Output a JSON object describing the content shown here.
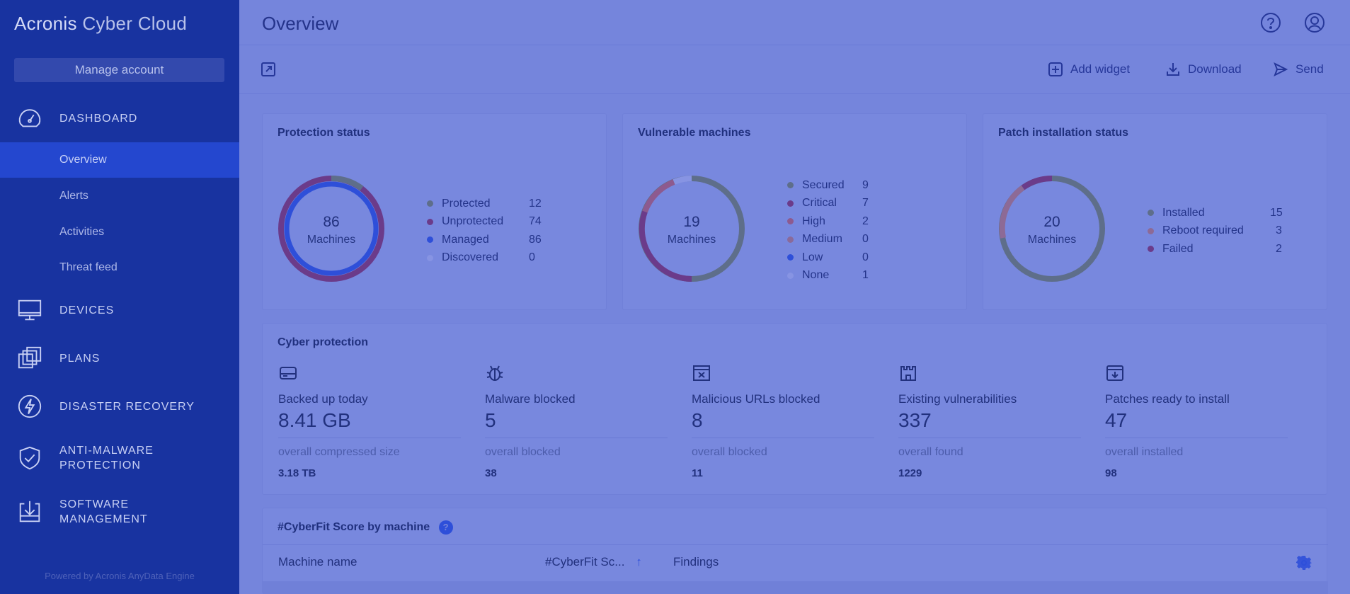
{
  "brand": {
    "part1": "Acronis",
    "part2": " Cyber Cloud"
  },
  "sidebar": {
    "manage_account": "Manage account",
    "sections": [
      {
        "label": "DASHBOARD",
        "icon": "gauge-icon"
      },
      {
        "label": "DEVICES",
        "icon": "monitor-icon"
      },
      {
        "label": "PLANS",
        "icon": "plans-icon"
      },
      {
        "label": "DISASTER RECOVERY",
        "icon": "lightning-icon"
      },
      {
        "label_line1": "ANTI-MALWARE",
        "label_line2": "PROTECTION",
        "icon": "shield-icon"
      },
      {
        "label_line1": "SOFTWARE",
        "label_line2": "MANAGEMENT",
        "icon": "software-icon"
      }
    ],
    "dashboard_items": [
      {
        "label": "Overview",
        "active": true
      },
      {
        "label": "Alerts"
      },
      {
        "label": "Activities"
      },
      {
        "label": "Threat feed"
      }
    ],
    "powered_by": "Powered by Acronis AnyData Engine"
  },
  "header": {
    "title": "Overview",
    "help_icon": "help-icon",
    "account_icon": "account-icon"
  },
  "toolbar": {
    "expand_icon": "expand-icon",
    "add_widget": "Add widget",
    "download": "Download",
    "send": "Send"
  },
  "colors": {
    "sidebar_bg": "#1833a0",
    "active_item": "#2447cf",
    "main_bg": "#7585dc",
    "protected": "#5e6e8a",
    "unprotected": "#6b3b8a",
    "managed": "#2e4fd9",
    "discovered": "#8794e3"
  },
  "widgets": {
    "protection": {
      "title": "Protection status",
      "total": "86",
      "unit": "Machines",
      "legend": [
        {
          "label": "Protected",
          "value": "12",
          "color": "#5e6e8a"
        },
        {
          "label": "Unprotected",
          "value": "74",
          "color": "#6b3b8a"
        },
        {
          "label": "Managed",
          "value": "86",
          "color": "#2e4fd9"
        },
        {
          "label": "Discovered",
          "value": "0",
          "color": "#8794e3"
        }
      ]
    },
    "vulnerable": {
      "title": "Vulnerable machines",
      "total": "19",
      "unit": "Machines",
      "legend": [
        {
          "label": "Secured",
          "value": "9",
          "color": "#5e6e8a"
        },
        {
          "label": "Critical",
          "value": "7",
          "color": "#6b3b8a"
        },
        {
          "label": "High",
          "value": "2",
          "color": "#8d5a8f"
        },
        {
          "label": "Medium",
          "value": "0",
          "color": "#8a6a9a"
        },
        {
          "label": "Low",
          "value": "0",
          "color": "#2e4fd9"
        },
        {
          "label": "None",
          "value": "1",
          "color": "#8794e3"
        }
      ]
    },
    "patch": {
      "title": "Patch installation status",
      "total": "20",
      "unit": "Machines",
      "legend": [
        {
          "label": "Installed",
          "value": "15",
          "color": "#5e6e8a"
        },
        {
          "label": "Reboot required",
          "value": "3",
          "color": "#8d6a96"
        },
        {
          "label": "Failed",
          "value": "2",
          "color": "#6b3b8a"
        }
      ]
    },
    "cyber": {
      "title": "Cyber protection",
      "items": [
        {
          "label": "Backed up today",
          "value": "8.41 GB",
          "sub": "overall compressed size",
          "subval": "3.18 TB",
          "icon": "drive-icon"
        },
        {
          "label": "Malware blocked",
          "value": "5",
          "sub": "overall blocked",
          "subval": "38",
          "icon": "bug-icon"
        },
        {
          "label": "Malicious URLs blocked",
          "value": "8",
          "sub": "overall blocked",
          "subval": "11",
          "icon": "browser-blocked-icon"
        },
        {
          "label": "Existing vulnerabilities",
          "value": "337",
          "sub": "overall found",
          "subval": "1229",
          "icon": "castle-icon"
        },
        {
          "label": "Patches ready to install",
          "value": "47",
          "sub": "overall installed",
          "subval": "98",
          "icon": "patch-download-icon"
        }
      ]
    },
    "cyberfit": {
      "title": "#CyberFit Score by machine",
      "columns": [
        "Machine name",
        "#CyberFit Sc...",
        "Findings"
      ]
    }
  }
}
